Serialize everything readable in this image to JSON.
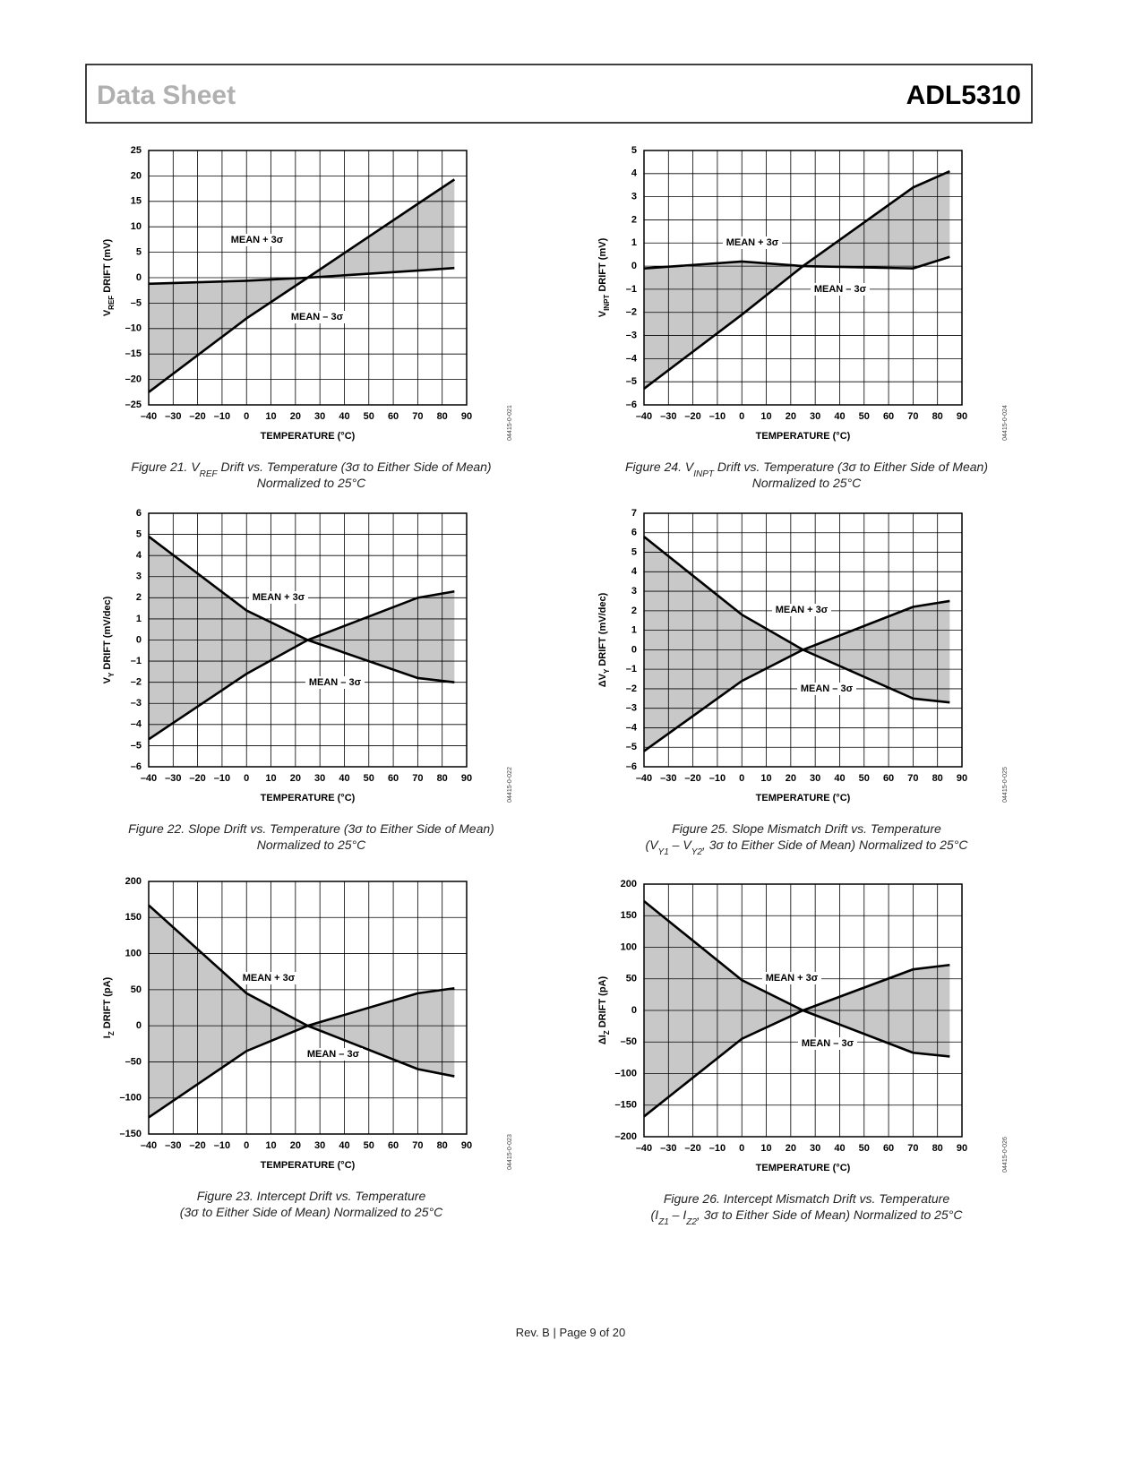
{
  "header": {
    "title": "Data Sheet",
    "product": "ADL5310"
  },
  "footer": "Rev. B | Page 9 of 20",
  "chart_data": [
    {
      "type": "line",
      "figure_id": "04415-0-021",
      "caption": [
        [
          "Figure 21. V",
          "REF",
          " Drift vs. Temperature (3σ to Either Side of Mean)"
        ],
        [
          "Normalized to 25°C"
        ]
      ],
      "ylabel": [
        "V",
        "REF",
        " DRIFT (mV)"
      ],
      "xlabel": "TEMPERATURE (°C)",
      "x": [
        -40,
        0,
        25,
        70,
        85
      ],
      "series": [
        {
          "name": "MEAN + 3σ",
          "color": "#000000",
          "values": [
            -22.5,
            -8,
            0,
            14.5,
            19.3
          ]
        },
        {
          "name": "MEAN – 3σ",
          "color": "#000000",
          "values": [
            -1.2,
            -0.6,
            0,
            1.4,
            1.9
          ]
        }
      ],
      "fill": "#c8c8c8",
      "xlim": [
        -40,
        90
      ],
      "xticks": [
        {
          "value": -40,
          "label": "–40"
        },
        {
          "value": -30,
          "label": "–30"
        },
        {
          "value": -20,
          "label": "–20"
        },
        {
          "value": -10,
          "label": "–10"
        },
        0,
        10,
        20,
        30,
        40,
        50,
        60,
        70,
        80,
        90
      ],
      "ylim": [
        -25,
        25
      ],
      "yticks": [
        {
          "value": -25,
          "label": "–25"
        },
        {
          "value": -20,
          "label": "–20"
        },
        {
          "value": -15,
          "label": "–15"
        },
        {
          "value": -10,
          "label": "–10"
        },
        {
          "value": -5,
          "label": "–5"
        },
        0,
        5,
        10,
        15,
        20,
        25
      ],
      "grid": true
    },
    {
      "type": "line",
      "figure_id": "04415-0-024",
      "caption": [
        [
          "Figure 24. V",
          "INPT",
          " Drift vs. Temperature (3σ to Either Side of Mean)"
        ],
        [
          "Normalized to 25°C"
        ]
      ],
      "ylabel": [
        "V",
        "INPT",
        " DRIFT (mV)"
      ],
      "xlabel": "TEMPERATURE (°C)",
      "x": [
        -40,
        0,
        25,
        70,
        85
      ],
      "series": [
        {
          "name": "MEAN + 3σ",
          "color": "#000000",
          "values": [
            -0.1,
            0.2,
            0,
            -0.1,
            0.4
          ]
        },
        {
          "name": "MEAN – 3σ",
          "color": "#000000",
          "values": [
            -5.3,
            -2.1,
            0,
            3.4,
            4.1
          ]
        }
      ],
      "fill": "#c8c8c8",
      "xlim": [
        -40,
        90
      ],
      "xticks": [
        {
          "value": -40,
          "label": "–40"
        },
        {
          "value": -30,
          "label": "–30"
        },
        {
          "value": -20,
          "label": "–20"
        },
        {
          "value": -10,
          "label": "–10"
        },
        0,
        10,
        20,
        30,
        40,
        50,
        60,
        70,
        80,
        90
      ],
      "ylim": [
        -6,
        5
      ],
      "yticks": [
        {
          "value": -6,
          "label": "–6"
        },
        {
          "value": -5,
          "label": "–5"
        },
        {
          "value": -4,
          "label": "–4"
        },
        {
          "value": -3,
          "label": "–3"
        },
        {
          "value": -2,
          "label": "–2"
        },
        {
          "value": -1,
          "label": "–1"
        },
        0,
        1,
        2,
        3,
        4,
        5
      ],
      "grid": true
    },
    {
      "type": "line",
      "figure_id": "04415-0-022",
      "caption": [
        [
          "Figure 22. Slope Drift vs. Temperature (3σ to Either Side of Mean)"
        ],
        [
          "Normalized to 25°C"
        ]
      ],
      "ylabel": [
        "V",
        "Y",
        " DRIFT (mV/dec)"
      ],
      "xlabel": "TEMPERATURE (°C)",
      "x": [
        -40,
        0,
        25,
        70,
        85
      ],
      "series": [
        {
          "name": "MEAN + 3σ",
          "color": "#000000",
          "values": [
            4.9,
            1.4,
            0,
            -1.8,
            -2
          ]
        },
        {
          "name": "MEAN – 3σ",
          "color": "#000000",
          "values": [
            -4.7,
            -1.6,
            0,
            2,
            2.3
          ]
        }
      ],
      "fill": "#c8c8c8",
      "xlim": [
        -40,
        90
      ],
      "xticks": [
        {
          "value": -40,
          "label": "–40"
        },
        {
          "value": -30,
          "label": "–30"
        },
        {
          "value": -20,
          "label": "–20"
        },
        {
          "value": -10,
          "label": "–10"
        },
        0,
        10,
        20,
        30,
        40,
        50,
        60,
        70,
        80,
        90
      ],
      "ylim": [
        -6,
        6
      ],
      "yticks": [
        {
          "value": -6,
          "label": "–6"
        },
        {
          "value": -5,
          "label": "–5"
        },
        {
          "value": -4,
          "label": "–4"
        },
        {
          "value": -3,
          "label": "–3"
        },
        {
          "value": -2,
          "label": "–2"
        },
        {
          "value": -1,
          "label": "–1"
        },
        0,
        1,
        2,
        3,
        4,
        5,
        6
      ],
      "grid": true
    },
    {
      "type": "line",
      "figure_id": "04415-0-025",
      "caption": [
        [
          "Figure 25. Slope Mismatch Drift vs. Temperature"
        ],
        [
          "(V",
          "Y1",
          " – V",
          "Y2",
          ", 3σ to Either Side of Mean) Normalized to 25°C"
        ]
      ],
      "ylabel": [
        "ΔV",
        "Y",
        " DRIFT (mV/dec)"
      ],
      "xlabel": "TEMPERATURE (°C)",
      "x": [
        -40,
        0,
        25,
        70,
        85
      ],
      "series": [
        {
          "name": "MEAN + 3σ",
          "color": "#000000",
          "values": [
            5.8,
            1.8,
            0,
            -2.5,
            -2.7
          ]
        },
        {
          "name": "MEAN – 3σ",
          "color": "#000000",
          "values": [
            -5.2,
            -1.6,
            0,
            2.2,
            2.5
          ]
        }
      ],
      "fill": "#c8c8c8",
      "xlim": [
        -40,
        90
      ],
      "xticks": [
        {
          "value": -40,
          "label": "–40"
        },
        {
          "value": -30,
          "label": "–30"
        },
        {
          "value": -20,
          "label": "–20"
        },
        {
          "value": -10,
          "label": "–10"
        },
        0,
        10,
        20,
        30,
        40,
        50,
        60,
        70,
        80,
        90
      ],
      "ylim": [
        -6,
        7
      ],
      "yticks": [
        {
          "value": -6,
          "label": "–6"
        },
        {
          "value": -5,
          "label": "–5"
        },
        {
          "value": -4,
          "label": "–4"
        },
        {
          "value": -3,
          "label": "–3"
        },
        {
          "value": -2,
          "label": "–2"
        },
        {
          "value": -1,
          "label": "–1"
        },
        0,
        1,
        2,
        3,
        4,
        5,
        6,
        7
      ],
      "grid": true
    },
    {
      "type": "line",
      "figure_id": "04415-0-023",
      "caption": [
        [
          "Figure 23. Intercept Drift vs. Temperature"
        ],
        [
          "(3σ to Either Side of Mean) Normalized to 25°C"
        ]
      ],
      "ylabel": [
        "I",
        "Z",
        " DRIFT (pA)"
      ],
      "xlabel": "TEMPERATURE (°C)",
      "x": [
        -40,
        0,
        25,
        70,
        85
      ],
      "series": [
        {
          "name": "MEAN + 3σ",
          "color": "#000000",
          "values": [
            167,
            45,
            0,
            -60,
            -70
          ]
        },
        {
          "name": "MEAN – 3σ",
          "color": "#000000",
          "values": [
            -127,
            -35,
            0,
            45,
            52
          ]
        }
      ],
      "fill": "#c8c8c8",
      "xlim": [
        -40,
        90
      ],
      "xticks": [
        {
          "value": -40,
          "label": "–40"
        },
        {
          "value": -30,
          "label": "–30"
        },
        {
          "value": -20,
          "label": "–20"
        },
        {
          "value": -10,
          "label": "–10"
        },
        0,
        10,
        20,
        30,
        40,
        50,
        60,
        70,
        80,
        90
      ],
      "ylim": [
        -150,
        200
      ],
      "yticks": [
        {
          "value": -150,
          "label": "–150"
        },
        {
          "value": -100,
          "label": "–100"
        },
        {
          "value": -50,
          "label": "–50"
        },
        0,
        50,
        100,
        150,
        200
      ],
      "grid": true
    },
    {
      "type": "line",
      "figure_id": "04415-0-026",
      "caption": [
        [
          "Figure 26. Intercept Mismatch Drift vs. Temperature"
        ],
        [
          "(I",
          "Z1",
          " – I",
          "Z2",
          ", 3σ to Either Side of Mean) Normalized to 25°C"
        ]
      ],
      "ylabel": [
        "ΔI",
        "Z",
        " DRIFT (pA)"
      ],
      "xlabel": "TEMPERATURE (°C)",
      "x": [
        -40,
        0,
        25,
        70,
        85
      ],
      "series": [
        {
          "name": "MEAN + 3σ",
          "color": "#000000",
          "values": [
            173,
            48,
            0,
            -67,
            -73
          ]
        },
        {
          "name": "MEAN – 3σ",
          "color": "#000000",
          "values": [
            -168,
            -45,
            0,
            65,
            72
          ]
        }
      ],
      "fill": "#c8c8c8",
      "xlim": [
        -40,
        90
      ],
      "xticks": [
        {
          "value": -40,
          "label": "–40"
        },
        {
          "value": -30,
          "label": "–30"
        },
        {
          "value": -20,
          "label": "–20"
        },
        {
          "value": -10,
          "label": "–10"
        },
        0,
        10,
        20,
        30,
        40,
        50,
        60,
        70,
        80,
        90
      ],
      "ylim": [
        -200,
        200
      ],
      "yticks": [
        {
          "value": -200,
          "label": "–200"
        },
        {
          "value": -150,
          "label": "–150"
        },
        {
          "value": -100,
          "label": "–100"
        },
        {
          "value": -50,
          "label": "–50"
        },
        0,
        50,
        100,
        150,
        200
      ],
      "grid": true
    }
  ]
}
